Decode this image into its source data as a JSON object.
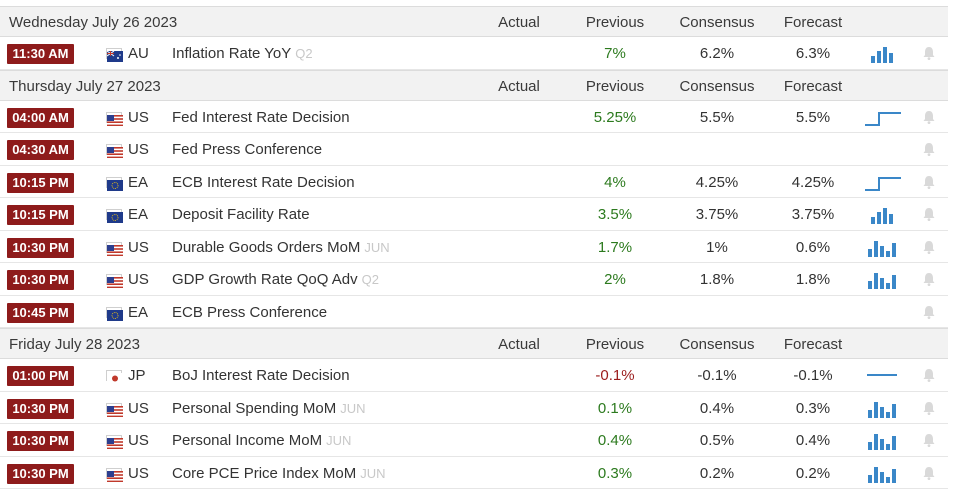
{
  "headers": {
    "actual": "Actual",
    "previous": "Previous",
    "consensus": "Consensus",
    "forecast": "Forecast"
  },
  "days": [
    {
      "date": "Wednesday July 26 2023",
      "events": [
        {
          "time": "11:30 AM",
          "flag": "au-flag-icon",
          "country": "AU",
          "event": "Inflation Rate YoY",
          "period": "Q2",
          "actual": "",
          "previous": "7%",
          "previous_color": "green",
          "consensus": "6.2%",
          "forecast": "6.3%",
          "chart": "bars-up-icon"
        }
      ]
    },
    {
      "date": "Thursday July 27 2023",
      "events": [
        {
          "time": "04:00 AM",
          "flag": "us-flag-icon",
          "country": "US",
          "event": "Fed Interest Rate Decision",
          "period": "",
          "actual": "",
          "previous": "5.25%",
          "previous_color": "green",
          "consensus": "5.5%",
          "forecast": "5.5%",
          "chart": "step-line-icon"
        },
        {
          "time": "04:30 AM",
          "flag": "us-flag-icon",
          "country": "US",
          "event": "Fed Press Conference",
          "period": "",
          "actual": "",
          "previous": "",
          "previous_color": "",
          "consensus": "",
          "forecast": "",
          "chart": ""
        },
        {
          "time": "10:15 PM",
          "flag": "eu-flag-icon",
          "country": "EA",
          "event": "ECB Interest Rate Decision",
          "period": "",
          "actual": "",
          "previous": "4%",
          "previous_color": "green",
          "consensus": "4.25%",
          "forecast": "4.25%",
          "chart": "step-line-icon"
        },
        {
          "time": "10:15 PM",
          "flag": "eu-flag-icon",
          "country": "EA",
          "event": "Deposit Facility Rate",
          "period": "",
          "actual": "",
          "previous": "3.5%",
          "previous_color": "green",
          "consensus": "3.75%",
          "forecast": "3.75%",
          "chart": "bars-up-icon"
        },
        {
          "time": "10:30 PM",
          "flag": "us-flag-icon",
          "country": "US",
          "event": "Durable Goods Orders MoM",
          "period": "JUN",
          "actual": "",
          "previous": "1.7%",
          "previous_color": "green",
          "consensus": "1%",
          "forecast": "0.6%",
          "chart": "bars-mixed-icon"
        },
        {
          "time": "10:30 PM",
          "flag": "us-flag-icon",
          "country": "US",
          "event": "GDP Growth Rate QoQ Adv",
          "period": "Q2",
          "actual": "",
          "previous": "2%",
          "previous_color": "green",
          "consensus": "1.8%",
          "forecast": "1.8%",
          "chart": "bars-mixed-icon"
        },
        {
          "time": "10:45 PM",
          "flag": "eu-flag-icon",
          "country": "EA",
          "event": "ECB Press Conference",
          "period": "",
          "actual": "",
          "previous": "",
          "previous_color": "",
          "consensus": "",
          "forecast": "",
          "chart": ""
        }
      ]
    },
    {
      "date": "Friday July 28 2023",
      "events": [
        {
          "time": "01:00 PM",
          "flag": "jp-flag-icon",
          "country": "JP",
          "event": "BoJ Interest Rate Decision",
          "period": "",
          "actual": "",
          "previous": "-0.1%",
          "previous_color": "red",
          "consensus": "-0.1%",
          "forecast": "-0.1%",
          "chart": "flat-line-icon"
        },
        {
          "time": "10:30 PM",
          "flag": "us-flag-icon",
          "country": "US",
          "event": "Personal Spending MoM",
          "period": "JUN",
          "actual": "",
          "previous": "0.1%",
          "previous_color": "green",
          "consensus": "0.4%",
          "forecast": "0.3%",
          "chart": "bars-mixed-icon"
        },
        {
          "time": "10:30 PM",
          "flag": "us-flag-icon",
          "country": "US",
          "event": "Personal Income MoM",
          "period": "JUN",
          "actual": "",
          "previous": "0.4%",
          "previous_color": "green",
          "consensus": "0.5%",
          "forecast": "0.4%",
          "chart": "bars-mixed-icon"
        },
        {
          "time": "10:30 PM",
          "flag": "us-flag-icon",
          "country": "US",
          "event": "Core PCE Price Index MoM",
          "period": "JUN",
          "actual": "",
          "previous": "0.3%",
          "previous_color": "green",
          "consensus": "0.2%",
          "forecast": "0.2%",
          "chart": "bars-mixed-icon"
        }
      ]
    }
  ],
  "colors": {
    "time_badge": "#8e1b1b",
    "positive": "#2c7a1e",
    "negative": "#9b1c1c",
    "chart_blue": "#3a87c8",
    "period": "#c8c8c8"
  }
}
